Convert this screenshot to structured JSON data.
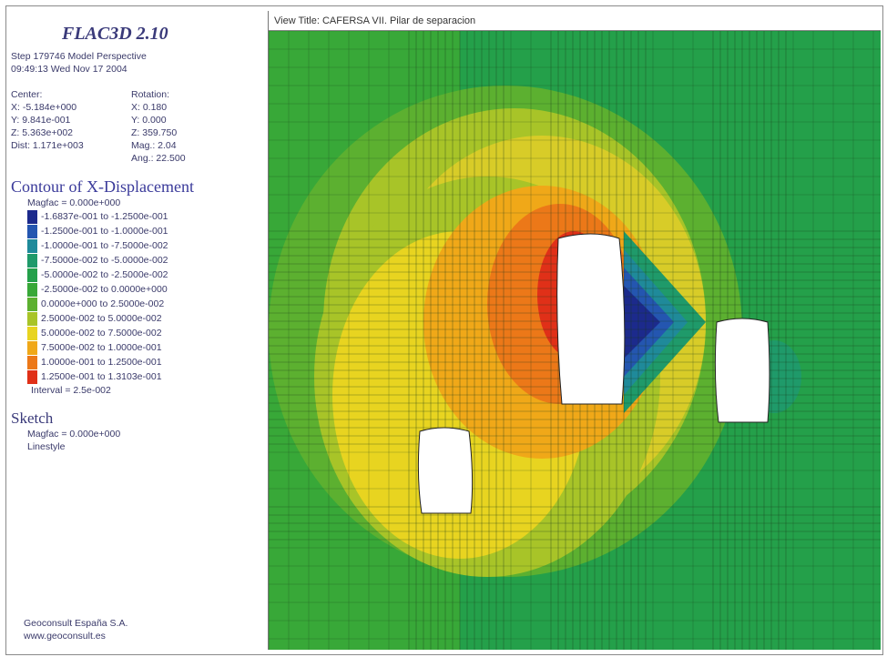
{
  "app": {
    "title": "FLAC3D 2.10",
    "step_line": "Step 179746  Model Perspective",
    "time_line": "09:49:13 Wed Nov 17 2004"
  },
  "view": {
    "center_label": "Center:",
    "rotation_label": "Rotation:",
    "cx": "X: -5.184e+000",
    "cy": "Y: 9.841e-001",
    "cz": "Z: 5.363e+002",
    "rx": "X:   0.180",
    "ry": "Y:   0.000",
    "rz": "Z: 359.750",
    "dist": "Dist: 1.171e+003",
    "mag": "Mag.:     2.04",
    "ang": "Ang.:  22.500"
  },
  "contour": {
    "title": "Contour of X-Displacement",
    "magfac": "Magfac = 0.000e+000",
    "interval": "Interval = 2.5e-002",
    "ranges": [
      {
        "label": "-1.6837e-001 to -1.2500e-001",
        "color": "#1c2a8c"
      },
      {
        "label": "-1.2500e-001 to -1.0000e-001",
        "color": "#2456b0"
      },
      {
        "label": "-1.0000e-001 to -7.5000e-002",
        "color": "#1f8a9a"
      },
      {
        "label": "-7.5000e-002 to -5.0000e-002",
        "color": "#1f9a6a"
      },
      {
        "label": "-5.0000e-002 to -2.5000e-002",
        "color": "#24a04a"
      },
      {
        "label": "-2.5000e-002 to  0.0000e+000",
        "color": "#38a838"
      },
      {
        "label": "0.0000e+000 to  2.5000e-002",
        "color": "#5cb030"
      },
      {
        "label": "2.5000e-002 to  5.0000e-002",
        "color": "#a8c428"
      },
      {
        "label": "5.0000e-002 to  7.5000e-002",
        "color": "#e8d420"
      },
      {
        "label": "7.5000e-002 to  1.0000e-001",
        "color": "#f0a818"
      },
      {
        "label": "1.0000e-001 to  1.2500e-001",
        "color": "#ec7818"
      },
      {
        "label": "1.2500e-001 to  1.3103e-001",
        "color": "#e03018"
      }
    ]
  },
  "sketch": {
    "title": "Sketch",
    "magfac": "Magfac = 0.000e+000",
    "linestyle": "Linestyle"
  },
  "footer": {
    "company": "Geoconsult España S.A.",
    "url": "www.geoconsult.es"
  },
  "view_title": "View Title:  CAFERSA VII. Pilar de separacion"
}
